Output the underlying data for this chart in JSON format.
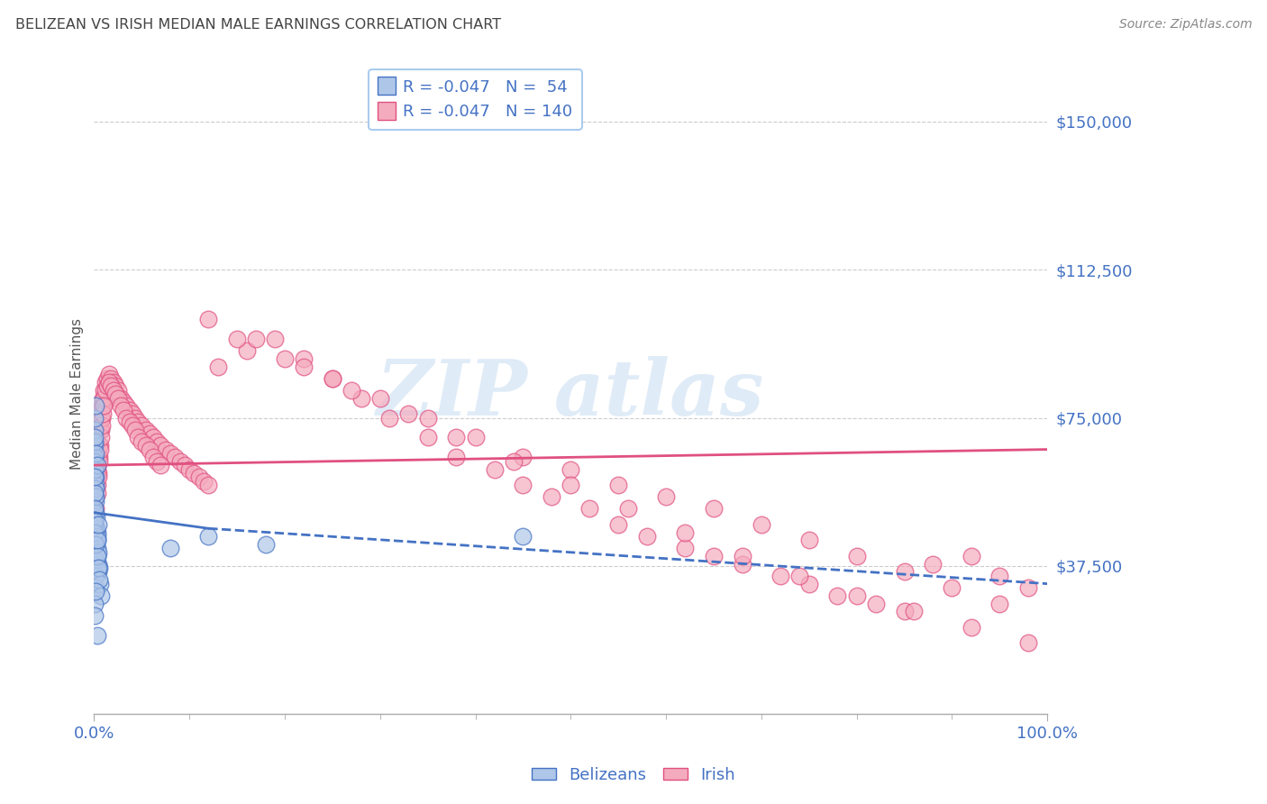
{
  "title": "BELIZEAN VS IRISH MEDIAN MALE EARNINGS CORRELATION CHART",
  "source": "Source: ZipAtlas.com",
  "ylabel": "Median Male Earnings",
  "yticks": [
    0,
    37500,
    75000,
    112500,
    150000
  ],
  "ytick_labels": [
    "",
    "$37,500",
    "$75,000",
    "$112,500",
    "$150,000"
  ],
  "ylim_max": 162000,
  "xlim": [
    0.0,
    1.0
  ],
  "belizean_color": "#AEC6E8",
  "belizean_edge": "#4472C4",
  "irish_color": "#F4ABBE",
  "irish_edge": "#E05080",
  "belizean_R": -0.047,
  "belizean_N": 54,
  "irish_R": -0.047,
  "irish_N": 140,
  "trend_belizean_color": "#4472C4",
  "trend_irish_color": "#E05080",
  "trend_bel_x0": 0.0,
  "trend_bel_y0": 51000,
  "trend_bel_x_switch": 0.12,
  "trend_bel_y_switch": 47000,
  "trend_bel_x1": 1.0,
  "trend_bel_y1": 33000,
  "trend_iri_y0": 63000,
  "trend_iri_y1": 67000,
  "axis_color": "#4472C4",
  "title_color": "#444444",
  "grid_color": "#CCCCCC",
  "watermark_color": "#C0D8F0",
  "watermark_alpha": 0.5,
  "belizean_x": [
    0.0005,
    0.0008,
    0.001,
    0.0012,
    0.0015,
    0.002,
    0.0025,
    0.003,
    0.0035,
    0.004,
    0.0005,
    0.0008,
    0.001,
    0.0012,
    0.0015,
    0.002,
    0.0025,
    0.003,
    0.0035,
    0.004,
    0.0005,
    0.0008,
    0.001,
    0.0012,
    0.0015,
    0.002,
    0.003,
    0.004,
    0.005,
    0.006,
    0.0005,
    0.0008,
    0.001,
    0.002,
    0.003,
    0.004,
    0.005,
    0.007,
    0.0008,
    0.001,
    0.002,
    0.003,
    0.001,
    0.002,
    0.003,
    0.004,
    0.001,
    0.08,
    0.12,
    0.18,
    0.45,
    0.002,
    0.003,
    0.001
  ],
  "belizean_y": [
    68000,
    72000,
    65000,
    60000,
    58000,
    54000,
    50000,
    46000,
    42000,
    38000,
    64000,
    69000,
    62000,
    57000,
    55000,
    51000,
    47000,
    44000,
    40000,
    36000,
    56000,
    48000,
    43000,
    39000,
    35000,
    32000,
    45000,
    41000,
    37000,
    33000,
    52000,
    49000,
    46000,
    43000,
    40000,
    37000,
    34000,
    30000,
    75000,
    70000,
    66000,
    63000,
    28000,
    31000,
    44000,
    48000,
    25000,
    42000,
    45000,
    43000,
    45000,
    78000,
    20000,
    60000
  ],
  "irish_x_dense": [
    0.001,
    0.002,
    0.003,
    0.004,
    0.005,
    0.006,
    0.007,
    0.008,
    0.009,
    0.01,
    0.012,
    0.014,
    0.016,
    0.018,
    0.02,
    0.022,
    0.025,
    0.028,
    0.031,
    0.034,
    0.037,
    0.04,
    0.043,
    0.046,
    0.05,
    0.054,
    0.058,
    0.062,
    0.066,
    0.07,
    0.075,
    0.08,
    0.085,
    0.09,
    0.095,
    0.1,
    0.105,
    0.11,
    0.115,
    0.12,
    0.001,
    0.002,
    0.003,
    0.004,
    0.005,
    0.006,
    0.007,
    0.008,
    0.009,
    0.01,
    0.012,
    0.014,
    0.016,
    0.018,
    0.02,
    0.022,
    0.025,
    0.028,
    0.031,
    0.034,
    0.037,
    0.04,
    0.043,
    0.046,
    0.05,
    0.054,
    0.058,
    0.062,
    0.066,
    0.07,
    0.001,
    0.002,
    0.003,
    0.004,
    0.005,
    0.006,
    0.007,
    0.008,
    0.009,
    0.01
  ],
  "irish_y_dense": [
    55000,
    58000,
    62000,
    65000,
    68000,
    72000,
    75000,
    78000,
    80000,
    82000,
    84000,
    85000,
    86000,
    85000,
    84000,
    83000,
    82000,
    80000,
    79000,
    78000,
    77000,
    76000,
    75000,
    74000,
    73000,
    72000,
    71000,
    70000,
    69000,
    68000,
    67000,
    66000,
    65000,
    64000,
    63000,
    62000,
    61000,
    60000,
    59000,
    58000,
    52000,
    55000,
    58000,
    61000,
    65000,
    68000,
    72000,
    75000,
    78000,
    80000,
    82000,
    83000,
    84000,
    83000,
    82000,
    81000,
    80000,
    78000,
    77000,
    75000,
    74000,
    73000,
    72000,
    70000,
    69000,
    68000,
    67000,
    65000,
    64000,
    63000,
    48000,
    52000,
    56000,
    60000,
    64000,
    67000,
    70000,
    73000,
    76000,
    78000
  ],
  "irish_x_spread": [
    0.13,
    0.16,
    0.19,
    0.22,
    0.25,
    0.28,
    0.31,
    0.35,
    0.38,
    0.42,
    0.45,
    0.48,
    0.52,
    0.55,
    0.58,
    0.62,
    0.65,
    0.68,
    0.72,
    0.75,
    0.78,
    0.82,
    0.85,
    0.88,
    0.92,
    0.95,
    0.98,
    0.15,
    0.2,
    0.25,
    0.3,
    0.35,
    0.4,
    0.45,
    0.5,
    0.55,
    0.6,
    0.65,
    0.7,
    0.75,
    0.8,
    0.85,
    0.9,
    0.95,
    0.12,
    0.17,
    0.22,
    0.27,
    0.33,
    0.38,
    0.44,
    0.5,
    0.56,
    0.62,
    0.68,
    0.74,
    0.8,
    0.86,
    0.92,
    0.98
  ],
  "irish_y_spread": [
    88000,
    92000,
    95000,
    90000,
    85000,
    80000,
    75000,
    70000,
    65000,
    62000,
    58000,
    55000,
    52000,
    48000,
    45000,
    42000,
    40000,
    38000,
    35000,
    33000,
    30000,
    28000,
    26000,
    38000,
    40000,
    35000,
    32000,
    95000,
    90000,
    85000,
    80000,
    75000,
    70000,
    65000,
    62000,
    58000,
    55000,
    52000,
    48000,
    44000,
    40000,
    36000,
    32000,
    28000,
    100000,
    95000,
    88000,
    82000,
    76000,
    70000,
    64000,
    58000,
    52000,
    46000,
    40000,
    35000,
    30000,
    26000,
    22000,
    18000
  ]
}
